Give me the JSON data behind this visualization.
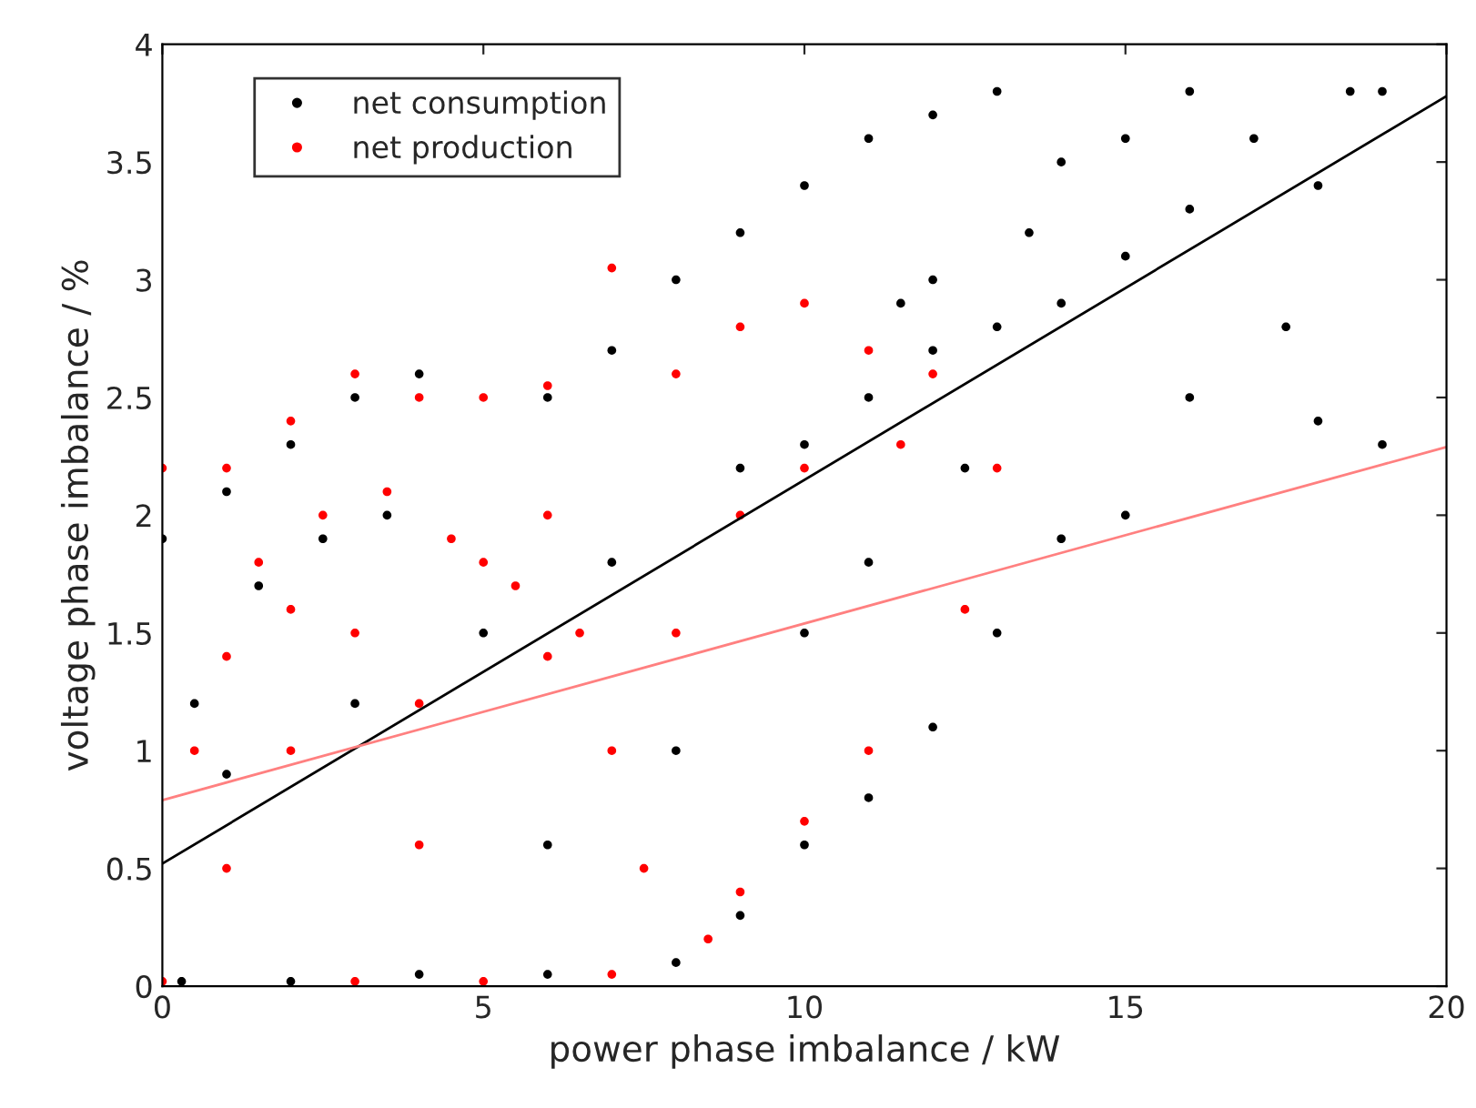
{
  "chart_data": {
    "type": "scatter",
    "xlabel": "power phase imbalance / kW",
    "ylabel": "voltage phase imbalance / %",
    "xlim": [
      0,
      20
    ],
    "xticks": [
      0,
      5,
      10,
      15,
      20
    ],
    "ylim": [
      0,
      4
    ],
    "yticks": [
      0,
      0.5,
      1,
      1.5,
      2,
      2.5,
      3,
      3.5,
      4
    ],
    "grid": false,
    "legend": "top left",
    "series": [
      {
        "name": "net consumption",
        "color": "#000000",
        "marker": "circle",
        "x": [
          0.3,
          0,
          1,
          2,
          3,
          4,
          6,
          7,
          8,
          9,
          10,
          11,
          12,
          13,
          14,
          15,
          16,
          17,
          18,
          19,
          18.5,
          17.5,
          18,
          19,
          16,
          15,
          14,
          13,
          12,
          11,
          10,
          9,
          8,
          6,
          4,
          2,
          11,
          12,
          10,
          13,
          12,
          9,
          5,
          3,
          1,
          7,
          14,
          15,
          16,
          12.5,
          11,
          10,
          8,
          6,
          0.5,
          1.5,
          2.5,
          3.5,
          11.5,
          13.5
        ],
        "values": [
          0.02,
          1.9,
          2.1,
          2.3,
          2.5,
          2.6,
          2.5,
          2.7,
          3.0,
          3.2,
          3.4,
          3.6,
          3.7,
          3.8,
          3.5,
          3.6,
          3.8,
          3.6,
          3.4,
          3.8,
          3.8,
          2.8,
          2.4,
          2.3,
          2.5,
          2.0,
          1.9,
          1.5,
          1.1,
          0.8,
          0.6,
          0.3,
          0.1,
          0.05,
          0.05,
          0.02,
          2.5,
          2.7,
          2.3,
          2.8,
          3.0,
          2.2,
          1.5,
          1.2,
          0.9,
          1.8,
          2.9,
          3.1,
          3.3,
          2.2,
          1.8,
          1.5,
          1.0,
          0.6,
          1.2,
          1.7,
          1.9,
          2.0,
          2.9,
          3.2
        ]
      },
      {
        "name": "net production",
        "color": "#ff0000",
        "marker": "circle",
        "x": [
          0,
          0,
          1,
          2,
          3,
          4,
          5,
          6,
          7,
          8,
          9,
          10,
          11,
          12,
          13,
          12.5,
          11,
          10,
          9,
          8.5,
          7,
          5,
          3,
          1,
          2,
          3,
          4,
          5,
          6,
          7,
          8,
          9,
          10,
          6,
          4,
          2,
          1,
          11.5,
          7.5,
          0.5,
          1.5,
          2.5,
          3.5,
          4.5,
          5.5,
          6.5
        ],
        "values": [
          0.02,
          2.2,
          2.2,
          2.4,
          2.6,
          2.5,
          2.5,
          2.55,
          3.05,
          2.6,
          2.8,
          2.9,
          2.7,
          2.6,
          2.2,
          1.6,
          1.0,
          0.7,
          0.4,
          0.2,
          0.05,
          0.02,
          0.02,
          0.5,
          1.0,
          1.5,
          1.2,
          1.8,
          1.4,
          1.0,
          1.5,
          2.0,
          2.2,
          2.0,
          0.6,
          1.6,
          1.4,
          2.3,
          0.5,
          1.0,
          1.8,
          2.0,
          2.1,
          1.9,
          1.7,
          1.5
        ]
      },
      {
        "type": "line",
        "color": "#000000",
        "x": [
          0,
          20
        ],
        "values": [
          0.52,
          3.78
        ]
      },
      {
        "type": "line",
        "color": "#ff8080",
        "x": [
          0,
          20
        ],
        "values": [
          0.79,
          2.29
        ]
      }
    ]
  }
}
